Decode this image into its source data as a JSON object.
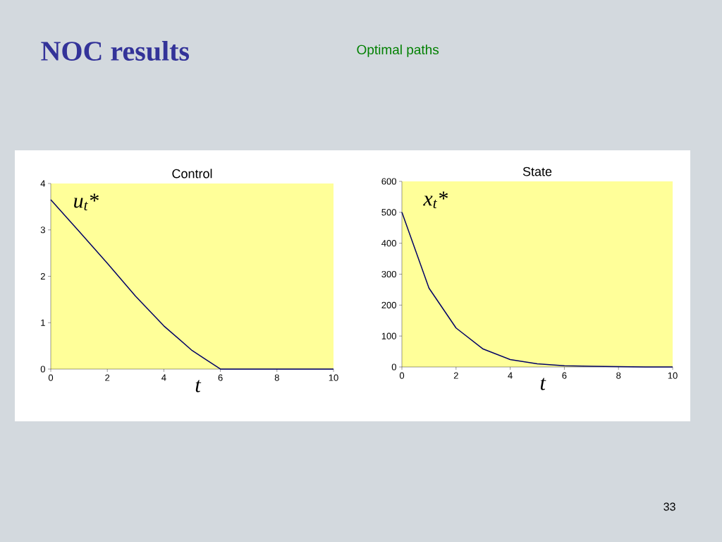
{
  "chart_data": [
    {
      "type": "other",
      "title": "NOC results",
      "subtitle": "Optimal paths",
      "annotations": [
        "33"
      ]
    },
    {
      "type": "line",
      "title": "Control",
      "xlabel": "t",
      "annotations": [
        "u$_{t}$*"
      ],
      "x": [
        0,
        1,
        2,
        3,
        4,
        5,
        6,
        7,
        8,
        9,
        10
      ],
      "series": [
        {
          "color": "#000066",
          "values": [
            3.65,
            2.97,
            2.28,
            1.57,
            0.93,
            0.4,
            0,
            0,
            0,
            0,
            0
          ]
        }
      ],
      "xlim": [
        0,
        10
      ],
      "xticks": [
        0,
        2,
        4,
        6,
        8,
        10
      ],
      "ylim": [
        0,
        4
      ],
      "yticks": [
        0,
        1,
        2,
        3,
        4
      ],
      "marker": "none",
      "line_style": "solid"
    },
    {
      "type": "line",
      "title": "State",
      "xlabel": "t",
      "annotations": [
        "x$_{t}$*"
      ],
      "x": [
        0,
        1,
        2,
        3,
        4,
        5,
        6,
        7,
        8,
        9,
        10
      ],
      "series": [
        {
          "color": "#000066",
          "values": [
            500,
            255,
            126,
            58,
            24,
            10,
            4,
            2,
            1,
            0,
            0
          ]
        }
      ],
      "xlim": [
        0,
        10
      ],
      "xticks": [
        0,
        2,
        4,
        6,
        8,
        10
      ],
      "ylim": [
        0,
        600
      ],
      "yticks": [
        0,
        100,
        200,
        300,
        400,
        500,
        600
      ],
      "marker": "none",
      "line_style": "solid"
    }
  ]
}
